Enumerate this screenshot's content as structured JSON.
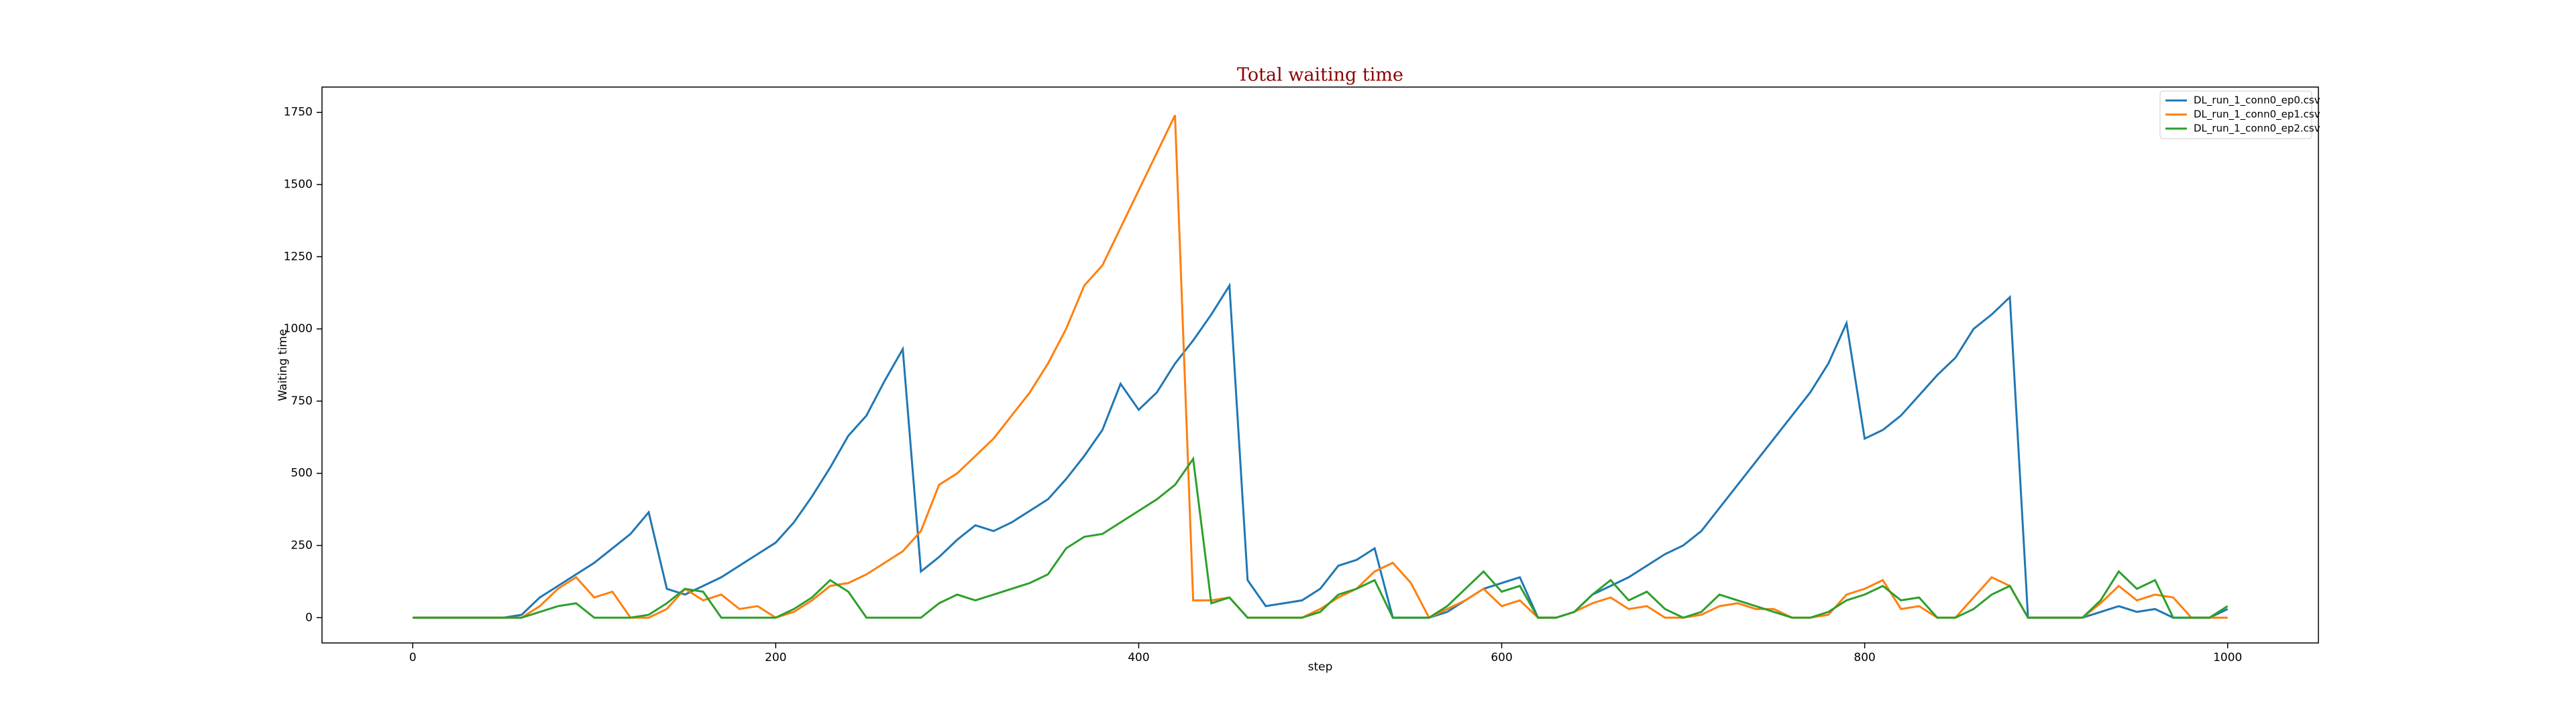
{
  "chart_data": {
    "type": "line",
    "title": "Total waiting time",
    "xlabel": "step",
    "ylabel": "Waiting time",
    "x": [
      0,
      10,
      20,
      30,
      40,
      50,
      60,
      70,
      80,
      90,
      100,
      110,
      120,
      130,
      140,
      150,
      160,
      170,
      180,
      190,
      200,
      210,
      220,
      230,
      240,
      250,
      260,
      270,
      280,
      290,
      300,
      310,
      320,
      330,
      340,
      350,
      360,
      370,
      380,
      390,
      400,
      410,
      420,
      430,
      440,
      450,
      460,
      470,
      480,
      490,
      500,
      510,
      520,
      530,
      540,
      550,
      560,
      570,
      580,
      590,
      600,
      610,
      620,
      630,
      640,
      650,
      660,
      670,
      680,
      690,
      700,
      710,
      720,
      730,
      740,
      750,
      760,
      770,
      780,
      790,
      800,
      810,
      820,
      830,
      840,
      850,
      860,
      870,
      880,
      890,
      900,
      910,
      920,
      930,
      940,
      950,
      960,
      970,
      980,
      990,
      1000
    ],
    "series": [
      {
        "name": "DL_run_1_conn0_ep0.csv",
        "color": "#1f77b4",
        "values": [
          0,
          0,
          0,
          0,
          0,
          0,
          10,
          70,
          110,
          150,
          190,
          240,
          290,
          365,
          100,
          80,
          110,
          140,
          180,
          220,
          260,
          330,
          420,
          520,
          630,
          700,
          820,
          930,
          160,
          210,
          270,
          320,
          300,
          330,
          370,
          410,
          480,
          560,
          650,
          810,
          720,
          780,
          880,
          960,
          1050,
          1150,
          130,
          40,
          50,
          60,
          100,
          180,
          200,
          240,
          0,
          0,
          0,
          20,
          60,
          100,
          120,
          140,
          0,
          0,
          20,
          80,
          110,
          140,
          180,
          220,
          250,
          300,
          380,
          460,
          540,
          620,
          700,
          780,
          880,
          1020,
          620,
          650,
          700,
          770,
          840,
          900,
          1000,
          1050,
          1110,
          0,
          0,
          0,
          0,
          20,
          40,
          20,
          30,
          0,
          0,
          0,
          30
        ]
      },
      {
        "name": "DL_run_1_conn0_ep1.csv",
        "color": "#ff7f0e",
        "values": [
          0,
          0,
          0,
          0,
          0,
          0,
          0,
          40,
          100,
          140,
          70,
          90,
          0,
          0,
          30,
          100,
          60,
          80,
          30,
          40,
          0,
          20,
          60,
          110,
          120,
          150,
          190,
          230,
          300,
          460,
          500,
          560,
          620,
          700,
          780,
          880,
          1000,
          1150,
          1220,
          1350,
          1480,
          1610,
          1740,
          60,
          60,
          70,
          0,
          0,
          0,
          0,
          30,
          70,
          100,
          160,
          190,
          120,
          0,
          30,
          60,
          100,
          40,
          60,
          0,
          0,
          20,
          50,
          70,
          30,
          40,
          0,
          0,
          10,
          40,
          50,
          30,
          30,
          0,
          0,
          10,
          80,
          100,
          130,
          30,
          40,
          0,
          0,
          70,
          140,
          110,
          0,
          0,
          0,
          0,
          50,
          110,
          60,
          80,
          70,
          0,
          0,
          0
        ]
      },
      {
        "name": "DL_run_1_conn0_ep2.csv",
        "color": "#2ca02c",
        "values": [
          0,
          0,
          0,
          0,
          0,
          0,
          0,
          20,
          40,
          50,
          0,
          0,
          0,
          10,
          50,
          100,
          90,
          0,
          0,
          0,
          0,
          30,
          70,
          130,
          90,
          0,
          0,
          0,
          0,
          50,
          80,
          60,
          80,
          100,
          120,
          150,
          240,
          280,
          290,
          330,
          370,
          410,
          460,
          550,
          50,
          70,
          0,
          0,
          0,
          0,
          20,
          80,
          100,
          130,
          0,
          0,
          0,
          40,
          100,
          160,
          90,
          110,
          0,
          0,
          20,
          80,
          130,
          60,
          90,
          30,
          0,
          20,
          80,
          60,
          40,
          20,
          0,
          0,
          20,
          60,
          80,
          110,
          60,
          70,
          0,
          0,
          30,
          80,
          110,
          0,
          0,
          0,
          0,
          60,
          160,
          100,
          130,
          0,
          0,
          0,
          40
        ]
      }
    ],
    "xlim": [
      -50,
      1050
    ],
    "ylim": [
      -87.5,
      1837.5
    ],
    "xticks": [
      0,
      200,
      400,
      600,
      800,
      1000
    ],
    "yticks": [
      0,
      250,
      500,
      750,
      1000,
      1250,
      1500,
      1750
    ],
    "legend": "upper right"
  }
}
